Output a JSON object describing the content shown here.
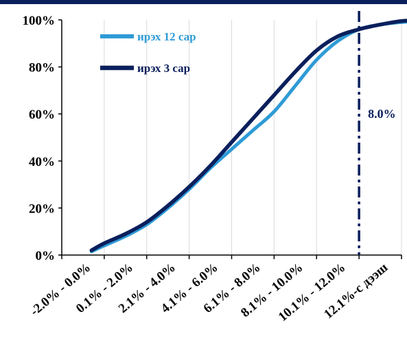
{
  "chart_data": {
    "type": "line",
    "categories": [
      "-2.0% - 0.0%",
      "0.1% - 2.0%",
      "2.1% - 4.0%",
      "4.1% - 6.0%",
      "6.1% - 8.0%",
      "8.1% - 10.0%",
      "10.1% - 12.0%",
      "12.1%-с дээш"
    ],
    "x": [
      0.7,
      1,
      1.5,
      2,
      2.5,
      3,
      3.5,
      4,
      4.5,
      5,
      5.5,
      6,
      6.5,
      7,
      7.5,
      8,
      8.5,
      9,
      9.5,
      10
    ],
    "series": [
      {
        "name": "ирэх 12 сар",
        "color": "#2e9bd6",
        "values": [
          1.5,
          4,
          8,
          13,
          20,
          28,
          37,
          45,
          53,
          61,
          72,
          83,
          91,
          96,
          98,
          99,
          99.5,
          99.7,
          99.8,
          100
        ]
      },
      {
        "name": "ирэх 3 сар",
        "color": "#0a1f5c",
        "values": [
          2,
          5,
          9,
          14,
          21,
          29,
          38,
          48,
          58,
          68,
          78,
          87,
          93,
          96,
          98,
          99.5,
          99.8,
          100,
          100,
          100
        ]
      }
    ],
    "ylim": [
      0,
      100
    ],
    "yticks": [
      "0%",
      "20%",
      "40%",
      "60%",
      "80%",
      "100%"
    ],
    "grid": "vertical",
    "legend": "top-left",
    "annotation": {
      "text": "8.0%",
      "x": 7,
      "color": "#0a1f5c"
    }
  }
}
